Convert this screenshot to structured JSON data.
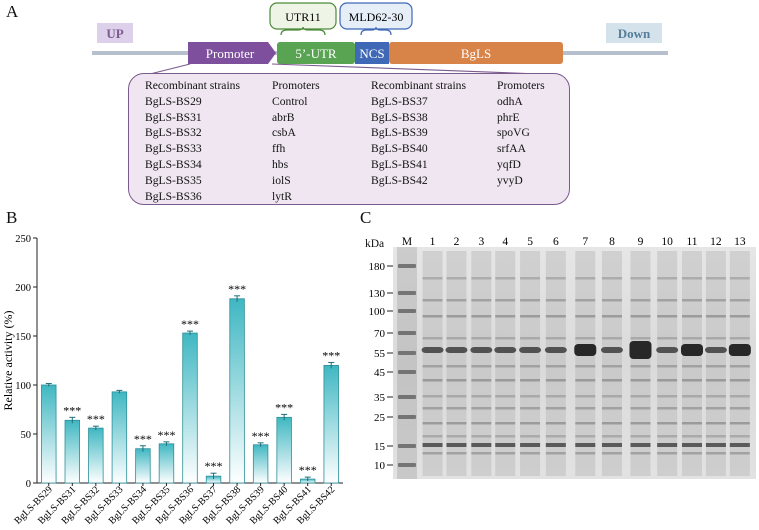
{
  "panels": {
    "a": "A",
    "b": "B",
    "c": "C"
  },
  "construct": {
    "up": "UP",
    "down": "Down",
    "promoter": "Promoter",
    "utr": "5’-UTR",
    "ncs": "NCS",
    "gene": "BgLS",
    "utr_variant": "UTR11",
    "ncs_variant": "MLD62-30",
    "colors": {
      "up": "#ddd0ea",
      "down": "#d4e2ec",
      "promoter": "#7d4f9c",
      "utr": "#58a453",
      "ncs": "#3f69b6",
      "gene": "#d88348",
      "backbone": "#b6c0cd",
      "callout_utr_fill": "#eef5e6",
      "callout_utr_border": "#4d8a3b",
      "callout_ncs_fill": "#e6eef8",
      "callout_ncs_border": "#3f69b6"
    }
  },
  "strain_table": {
    "header_strain": "Recombinant strains",
    "header_promoter": "Promoters",
    "left": [
      {
        "strain": "BgLS-BS29",
        "promoter": "Control"
      },
      {
        "strain": "BgLS-BS31",
        "promoter": "abrB"
      },
      {
        "strain": "BgLS-BS32",
        "promoter": "csbA"
      },
      {
        "strain": "BgLS-BS33",
        "promoter": "ffh"
      },
      {
        "strain": "BgLS-BS34",
        "promoter": "hbs"
      },
      {
        "strain": "BgLS-BS35",
        "promoter": "iolS"
      },
      {
        "strain": "BgLS-BS36",
        "promoter": "lytR"
      }
    ],
    "right": [
      {
        "strain": "BgLS-BS37",
        "promoter": "odhA"
      },
      {
        "strain": "BgLS-BS38",
        "promoter": "phrE"
      },
      {
        "strain": "BgLS-BS39",
        "promoter": "spoVG"
      },
      {
        "strain": "BgLS-BS40",
        "promoter": "srfAA"
      },
      {
        "strain": "BgLS-BS41",
        "promoter": "yqfD"
      },
      {
        "strain": "BgLS-BS42",
        "promoter": "yvyD"
      }
    ]
  },
  "chart_data": {
    "type": "bar",
    "ylabel": "Relative activity (%)",
    "xlabel": "",
    "ylim": [
      0,
      250
    ],
    "yticks": [
      0,
      50,
      100,
      150,
      200,
      250
    ],
    "categories": [
      "BgLS-BS29",
      "BgLS-BS31",
      "BgLS-BS32",
      "BgLS-BS33",
      "BgLS-BS34",
      "BgLS-BS35",
      "BgLS-BS36",
      "BgLS-BS37",
      "BgLS-BS38",
      "BgLS-BS39",
      "BgLS-BS40",
      "BgLS-BS41",
      "BgLS-BS42"
    ],
    "values": [
      100,
      64,
      56,
      93,
      35,
      40,
      153,
      7,
      188,
      39,
      67,
      4,
      120
    ],
    "errors": [
      1.5,
      3,
      2,
      1.5,
      3,
      2,
      2,
      3,
      3,
      2,
      3,
      2,
      3
    ],
    "significance": [
      "",
      "***",
      "***",
      "",
      "***",
      "***",
      "***",
      "***",
      "***",
      "***",
      "***",
      "***",
      "***"
    ],
    "bar_color_top": "#3fb7c2",
    "bar_color_bottom": "#ffffff",
    "bar_edge": "#2c8f9a"
  },
  "gel": {
    "unit": "kDa",
    "marker_label": "M",
    "lanes": [
      "1",
      "2",
      "3",
      "4",
      "5",
      "6",
      "7",
      "8",
      "9",
      "10",
      "11",
      "12",
      "13"
    ],
    "markers": [
      180,
      130,
      100,
      70,
      55,
      45,
      35,
      25,
      15,
      10
    ]
  }
}
